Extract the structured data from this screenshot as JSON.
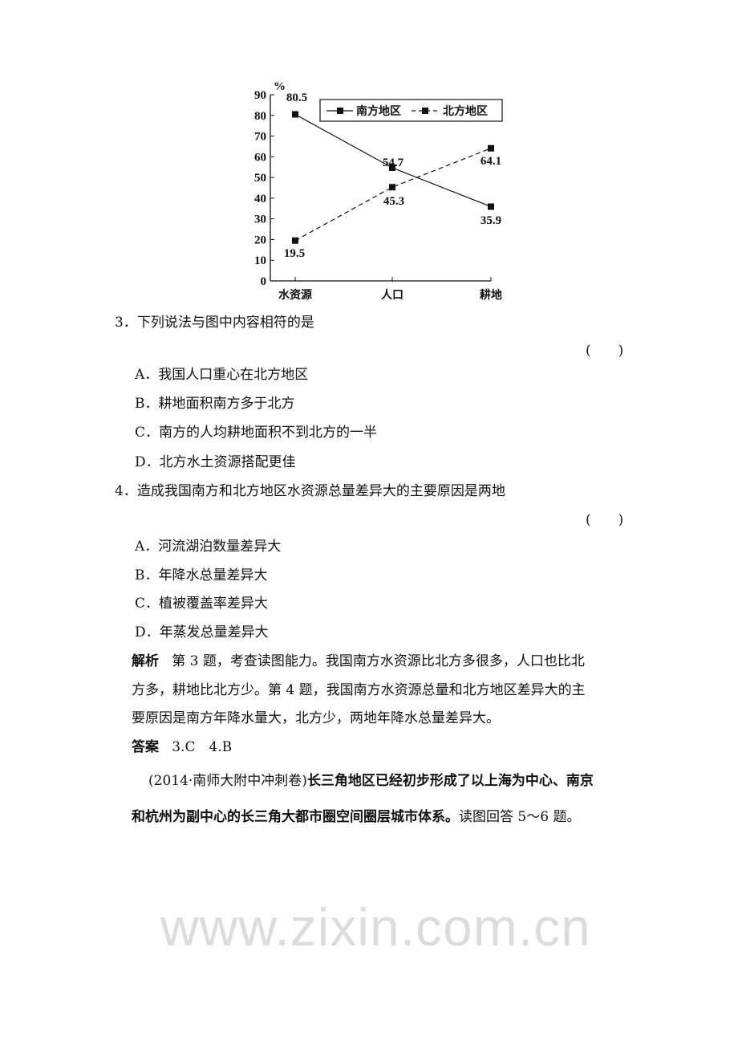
{
  "chart_data": {
    "type": "line",
    "title": "",
    "xlabel": "",
    "ylabel": "%",
    "ylim": [
      0,
      90
    ],
    "yticks": [
      0,
      10,
      20,
      30,
      40,
      50,
      60,
      70,
      80,
      90
    ],
    "categories": [
      "水资源",
      "人口",
      "耕地"
    ],
    "grid": false,
    "legend_position": "top-right",
    "series": [
      {
        "name": "南方地区",
        "values": [
          80.5,
          54.7,
          35.9
        ],
        "labels": [
          "80.5",
          "54.7",
          "35.9"
        ],
        "style": "solid",
        "marker": "square",
        "color": "#111111"
      },
      {
        "name": "北方地区",
        "values": [
          19.5,
          45.3,
          64.1
        ],
        "labels": [
          "19.5",
          "45.3",
          "64.1"
        ],
        "style": "dashed",
        "marker": "square",
        "color": "#111111"
      }
    ]
  },
  "q3": {
    "stem": "3．下列说法与图中内容相符的是",
    "bracket": "(　　)",
    "options": [
      "A．我国人口重心在北方地区",
      "B．耕地面积南方多于北方",
      "C．南方的人均耕地面积不到北方的一半",
      "D．北方水土资源搭配更佳"
    ]
  },
  "q4": {
    "stem": "4．造成我国南方和北方地区水资源总量差异大的主要原因是两地",
    "bracket": "(　　)",
    "options": [
      "A．河流湖泊数量差异大",
      "B．年降水总量差异大",
      "C．植被覆盖率差异大",
      "D．年蒸发总量差异大"
    ]
  },
  "analysis": {
    "label": "解析",
    "lines": [
      "第 3 题，考查读图能力。我国南方水资源比北方多很多，人口也比北",
      "方多，耕地比北方少。第 4 题，我国南方水资源总量和北方地区差异大的主",
      "要原因是南方年降水量大，北方少，两地年降水总量差异大。"
    ]
  },
  "answer": {
    "label": "答案",
    "text": "3.C　4.B"
  },
  "intro": {
    "source": "(2014·南师大附中冲刺卷)",
    "line1_rest": "长三角地区已经初步形成了以上海为中心、南京",
    "line2_bold": "和杭州为副中心的长三角大都市圈空间圈层城市体系。",
    "line2_rest": "读图回答 5～6 题。"
  },
  "watermark": "www.zixin.com.cn"
}
